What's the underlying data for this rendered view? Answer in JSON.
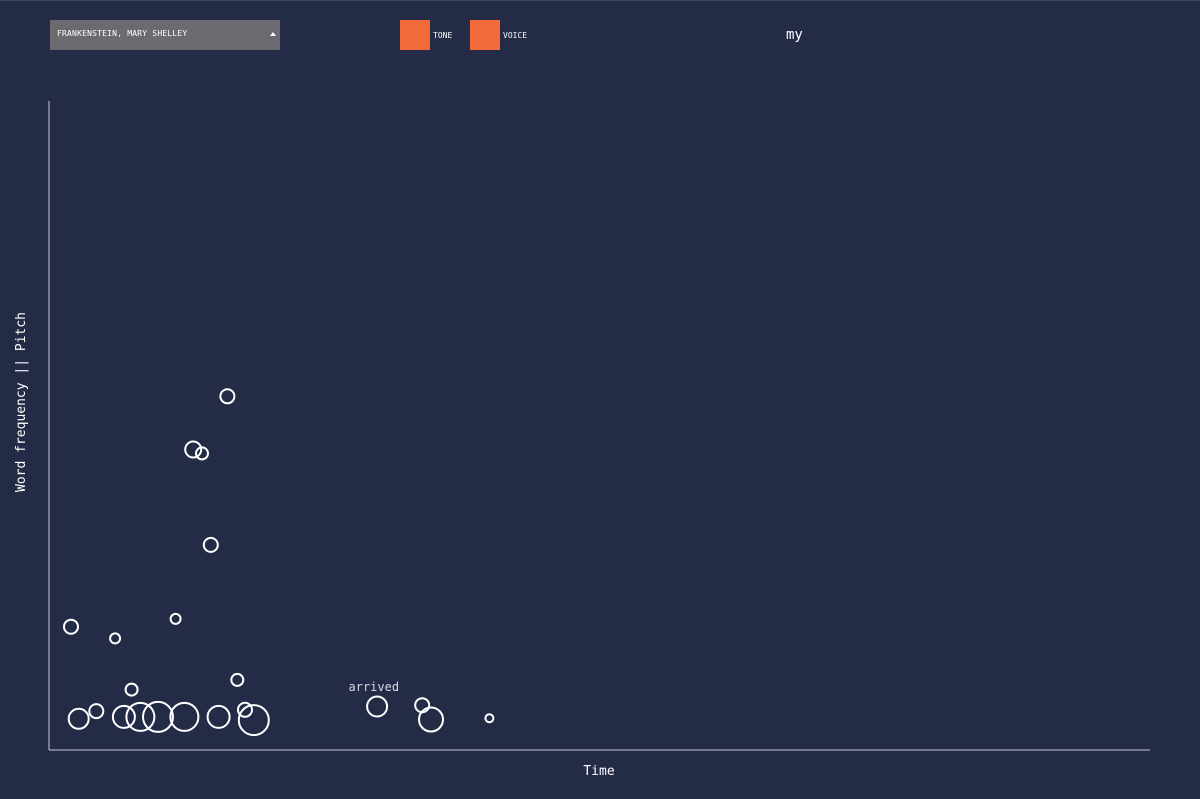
{
  "controls": {
    "book_select": "FRANKENSTEIN, MARY SHELLEY",
    "toggles": [
      {
        "label": "TONE",
        "color": "#f26b3a"
      },
      {
        "label": "VOICE",
        "color": "#f26b3a"
      }
    ],
    "current_word": "my"
  },
  "colors": {
    "background": "#232b46",
    "axis": "#c9ccd6",
    "marker": "#ffffff",
    "dropdown": "#6b6b6f"
  },
  "chart_data": {
    "type": "scatter",
    "xlabel": "Time",
    "ylabel": "Word frequency || Pitch",
    "grid": false,
    "xlim": [
      0,
      100
    ],
    "ylim": [
      0,
      100
    ],
    "annotations": [
      {
        "text": "arrived",
        "x": 29.5,
        "y": 9.1
      }
    ],
    "points": [
      {
        "x": 2.0,
        "y": 19.0,
        "size": 7
      },
      {
        "x": 2.7,
        "y": 4.8,
        "size": 10
      },
      {
        "x": 4.3,
        "y": 6.0,
        "size": 7
      },
      {
        "x": 6.0,
        "y": 17.2,
        "size": 5
      },
      {
        "x": 6.8,
        "y": 5.1,
        "size": 11
      },
      {
        "x": 7.5,
        "y": 9.3,
        "size": 6
      },
      {
        "x": 8.3,
        "y": 5.1,
        "size": 14
      },
      {
        "x": 9.9,
        "y": 5.1,
        "size": 15
      },
      {
        "x": 11.5,
        "y": 20.2,
        "size": 5
      },
      {
        "x": 12.3,
        "y": 5.1,
        "size": 14
      },
      {
        "x": 13.1,
        "y": 46.3,
        "size": 8
      },
      {
        "x": 13.9,
        "y": 45.7,
        "size": 6
      },
      {
        "x": 14.7,
        "y": 31.6,
        "size": 7
      },
      {
        "x": 15.4,
        "y": 5.1,
        "size": 11
      },
      {
        "x": 16.2,
        "y": 54.5,
        "size": 7
      },
      {
        "x": 17.1,
        "y": 10.8,
        "size": 6
      },
      {
        "x": 17.8,
        "y": 6.2,
        "size": 7
      },
      {
        "x": 18.6,
        "y": 4.6,
        "size": 15
      },
      {
        "x": 29.8,
        "y": 6.7,
        "size": 10
      },
      {
        "x": 33.9,
        "y": 6.9,
        "size": 7
      },
      {
        "x": 34.7,
        "y": 4.7,
        "size": 12
      },
      {
        "x": 40.0,
        "y": 4.9,
        "size": 4
      }
    ]
  }
}
